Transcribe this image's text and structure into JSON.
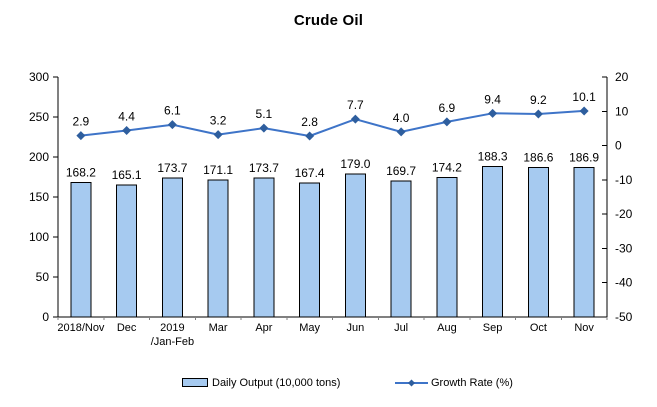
{
  "chart_data": {
    "type": "bar+line",
    "title": "Crude Oil",
    "categories": [
      [
        "2018/Nov"
      ],
      [
        "Dec"
      ],
      [
        "2019",
        "/Jan-Feb"
      ],
      [
        "Mar"
      ],
      [
        "Apr"
      ],
      [
        "May"
      ],
      [
        "Jun"
      ],
      [
        "Jul"
      ],
      [
        "Aug"
      ],
      [
        "Sep"
      ],
      [
        "Oct"
      ],
      [
        "Nov"
      ]
    ],
    "series": [
      {
        "name": "Daily Output (10,000 tons)",
        "type": "bar",
        "axis": "left",
        "values": [
          168.2,
          165.1,
          173.7,
          171.1,
          173.7,
          167.4,
          179.0,
          169.7,
          174.2,
          188.3,
          186.6,
          186.9
        ]
      },
      {
        "name": "Growth Rate (%)",
        "type": "line",
        "axis": "right",
        "values": [
          2.9,
          4.4,
          6.1,
          3.2,
          5.1,
          2.8,
          7.7,
          4.0,
          6.9,
          9.4,
          9.2,
          10.1
        ]
      }
    ],
    "left_axis": {
      "min": 0,
      "max": 300,
      "ticks": [
        300,
        250,
        200,
        150,
        100,
        50,
        0
      ]
    },
    "right_axis": {
      "min": -50,
      "max": 20,
      "ticks": [
        20,
        10,
        0,
        -10,
        -20,
        -30,
        -40,
        -50
      ]
    },
    "legend": [
      "Daily Output (10,000 tons)",
      "Growth Rate (%)"
    ],
    "legend_position": "bottom",
    "grid": false,
    "colors": {
      "background": "#ffffff",
      "bar_fill": "#A6CAF0",
      "bar_border": "#000000",
      "line": "#3E74C8",
      "marker": "#2E5E9E",
      "axis": "#000000",
      "x_tick": "#808080",
      "text": "#000000"
    }
  }
}
